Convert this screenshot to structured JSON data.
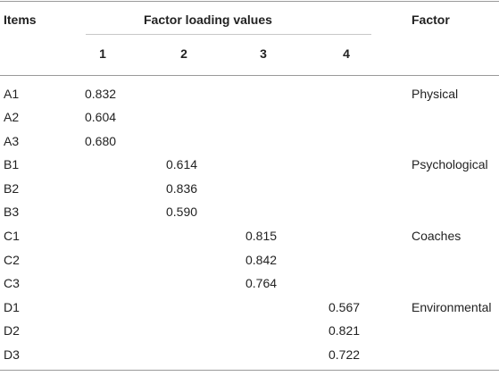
{
  "header": {
    "items": "Items",
    "group": "Factor loading values",
    "factor": "Factor",
    "cols": [
      "1",
      "2",
      "3",
      "4"
    ]
  },
  "rows": [
    {
      "item": "A1",
      "values": [
        "0.832",
        "",
        "",
        ""
      ],
      "factor": "Physical"
    },
    {
      "item": "A2",
      "values": [
        "0.604",
        "",
        "",
        ""
      ],
      "factor": ""
    },
    {
      "item": "A3",
      "values": [
        "0.680",
        "",
        "",
        ""
      ],
      "factor": ""
    },
    {
      "item": "B1",
      "values": [
        "",
        "0.614",
        "",
        ""
      ],
      "factor": "Psychological"
    },
    {
      "item": "B2",
      "values": [
        "",
        "0.836",
        "",
        ""
      ],
      "factor": ""
    },
    {
      "item": "B3",
      "values": [
        "",
        "0.590",
        "",
        ""
      ],
      "factor": ""
    },
    {
      "item": "C1",
      "values": [
        "",
        "",
        "0.815",
        ""
      ],
      "factor": "Coaches"
    },
    {
      "item": "C2",
      "values": [
        "",
        "",
        "0.842",
        ""
      ],
      "factor": ""
    },
    {
      "item": "C3",
      "values": [
        "",
        "",
        "0.764",
        ""
      ],
      "factor": ""
    },
    {
      "item": "D1",
      "values": [
        "",
        "",
        "",
        "0.567"
      ],
      "factor": "Environmental"
    },
    {
      "item": "D2",
      "values": [
        "",
        "",
        "",
        "0.821"
      ],
      "factor": ""
    },
    {
      "item": "D3",
      "values": [
        "",
        "",
        "",
        "0.722"
      ],
      "factor": ""
    }
  ]
}
